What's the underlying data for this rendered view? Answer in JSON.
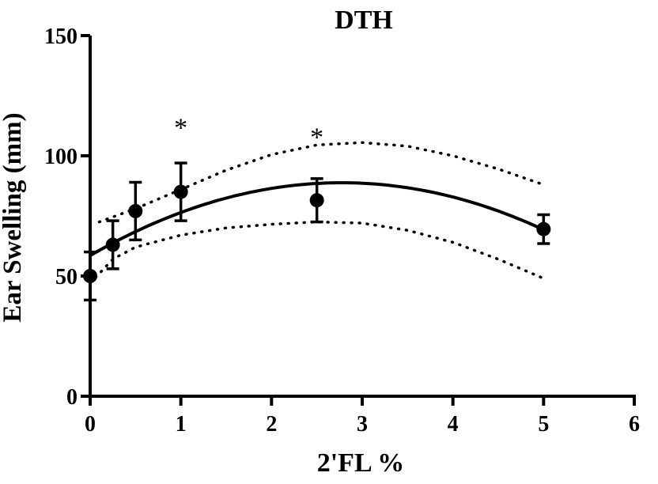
{
  "chart_data": {
    "type": "scatter",
    "title": "DTH",
    "xlabel": "2'FL %",
    "ylabel": "Ear Swelling (mm)",
    "xlim": [
      0,
      6
    ],
    "ylim": [
      0,
      150
    ],
    "x_ticks": [
      0,
      1,
      2,
      3,
      4,
      5,
      6
    ],
    "y_ticks": [
      0,
      50,
      100,
      150
    ],
    "points": [
      {
        "x": 0,
        "y": 50,
        "err": 10
      },
      {
        "x": 0.25,
        "y": 63,
        "err": 10
      },
      {
        "x": 0.5,
        "y": 77,
        "err": 12
      },
      {
        "x": 1,
        "y": 85,
        "err": 12
      },
      {
        "x": 2.5,
        "y": 81.5,
        "err": 9
      },
      {
        "x": 5,
        "y": 69.5,
        "err": 6
      }
    ],
    "fit": {
      "name": "quadratic fit",
      "a": -3.94,
      "b": 21.85,
      "c": 58.5,
      "x_range": [
        0,
        5
      ]
    },
    "confidence_band": {
      "upper": [
        [
          0.1,
          72.5
        ],
        [
          0.5,
          78
        ],
        [
          1,
          86
        ],
        [
          1.5,
          94
        ],
        [
          2,
          100.5
        ],
        [
          2.5,
          104.5
        ],
        [
          3,
          105.5
        ],
        [
          3.5,
          104
        ],
        [
          4,
          100
        ],
        [
          4.5,
          94.5
        ],
        [
          5,
          88
        ]
      ],
      "lower": [
        [
          0,
          47
        ],
        [
          0.25,
          57
        ],
        [
          0.5,
          62
        ],
        [
          1,
          67
        ],
        [
          1.5,
          70
        ],
        [
          2,
          71.5
        ],
        [
          2.5,
          72.5
        ],
        [
          3,
          72
        ],
        [
          3.5,
          69
        ],
        [
          4,
          64
        ],
        [
          4.5,
          57
        ],
        [
          5,
          49
        ]
      ]
    },
    "annotations": [
      {
        "text": "*",
        "x": 1,
        "y": 112
      },
      {
        "text": "*",
        "x": 2.5,
        "y": 108
      }
    ]
  }
}
